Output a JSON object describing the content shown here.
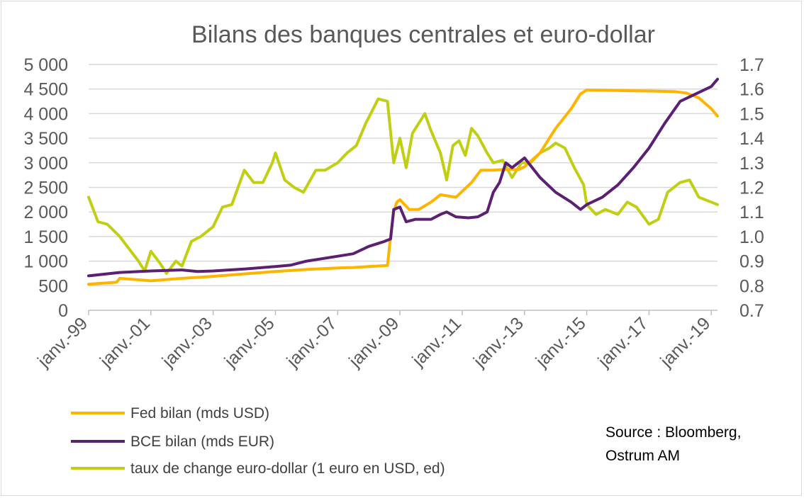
{
  "chart_data": {
    "type": "line",
    "title": "Bilans des banques centrales et euro-dollar",
    "x_tick_labels": [
      "janv.-99",
      "janv.-01",
      "janv.-03",
      "janv.-05",
      "janv.-07",
      "janv.-09",
      "janv.-11",
      "janv.-13",
      "janv.-15",
      "janv.-17",
      "janv.-19"
    ],
    "y_left": {
      "tick_labels": [
        "0",
        "500",
        "1 000",
        "1 500",
        "2 000",
        "2 500",
        "3 000",
        "3 500",
        "4 000",
        "4 500",
        "5 000"
      ],
      "ylim": [
        0,
        5000
      ]
    },
    "y_right": {
      "tick_labels": [
        "0.7",
        "0.8",
        "0.9",
        "1.0",
        "1.1",
        "1.2",
        "1.3",
        "1.4",
        "1.5",
        "1.6",
        "1.7"
      ],
      "ylim": [
        0.7,
        1.7
      ]
    },
    "grid": true,
    "legend_position": "bottom-left",
    "series": [
      {
        "name": "Fed bilan (mds USD)",
        "axis": "left",
        "color": "#ffb400",
        "x": [
          1999.0,
          1999.9,
          2000.0,
          2001.0,
          2002.0,
          2003.0,
          2004.0,
          2005.0,
          2006.0,
          2007.0,
          2007.5,
          2008.0,
          2008.6,
          2008.7,
          2008.8,
          2008.9,
          2009.0,
          2009.3,
          2009.6,
          2010.0,
          2010.3,
          2010.5,
          2010.8,
          2011.3,
          2011.6,
          2012.0,
          2012.5,
          2012.8,
          2013.0,
          2013.5,
          2014.0,
          2014.5,
          2014.8,
          2015.0,
          2016.0,
          2017.0,
          2017.8,
          2018.2,
          2018.6,
          2019.0,
          2019.2
        ],
        "y": [
          530,
          570,
          650,
          600,
          650,
          690,
          740,
          790,
          830,
          860,
          870,
          890,
          910,
          1500,
          2000,
          2200,
          2250,
          2050,
          2050,
          2200,
          2350,
          2330,
          2300,
          2600,
          2850,
          2850,
          2870,
          2860,
          2920,
          3200,
          3700,
          4100,
          4400,
          4480,
          4470,
          4460,
          4450,
          4420,
          4320,
          4100,
          3950
        ]
      },
      {
        "name": "BCE bilan (mds EUR)",
        "axis": "left",
        "color": "#5b2073",
        "x": [
          1999.0,
          2000.0,
          2001.0,
          2002.0,
          2002.5,
          2003.0,
          2004.0,
          2005.0,
          2005.5,
          2006.0,
          2007.0,
          2007.5,
          2008.0,
          2008.5,
          2008.7,
          2008.8,
          2009.0,
          2009.2,
          2009.5,
          2010.0,
          2010.3,
          2010.5,
          2010.8,
          2011.2,
          2011.5,
          2011.8,
          2012.0,
          2012.2,
          2012.4,
          2012.6,
          2013.0,
          2013.5,
          2014.0,
          2014.5,
          2014.8,
          2015.0,
          2015.5,
          2016.0,
          2016.5,
          2017.0,
          2017.5,
          2018.0,
          2018.5,
          2019.0,
          2019.2
        ],
        "y": [
          700,
          770,
          800,
          820,
          790,
          800,
          840,
          890,
          920,
          1000,
          1100,
          1150,
          1300,
          1400,
          1450,
          2050,
          2100,
          1800,
          1850,
          1850,
          1950,
          2000,
          1900,
          1880,
          1900,
          2000,
          2400,
          2600,
          3000,
          2900,
          3100,
          2700,
          2400,
          2200,
          2050,
          2150,
          2300,
          2550,
          2900,
          3300,
          3800,
          4250,
          4400,
          4550,
          4700
        ]
      },
      {
        "name": "taux de change euro-dollar (1 euro en USD, ed)",
        "axis": "right",
        "color": "#c0cf12",
        "x": [
          1999.0,
          1999.3,
          1999.6,
          2000.0,
          2000.3,
          2000.6,
          2000.8,
          2001.0,
          2001.3,
          2001.5,
          2001.8,
          2002.0,
          2002.3,
          2002.6,
          2003.0,
          2003.3,
          2003.6,
          2004.0,
          2004.3,
          2004.6,
          2004.9,
          2005.0,
          2005.3,
          2005.6,
          2005.9,
          2006.3,
          2006.6,
          2007.0,
          2007.3,
          2007.6,
          2007.9,
          2008.3,
          2008.6,
          2008.8,
          2009.0,
          2009.2,
          2009.4,
          2009.8,
          2010.0,
          2010.3,
          2010.5,
          2010.7,
          2010.9,
          2011.1,
          2011.3,
          2011.5,
          2011.8,
          2012.0,
          2012.3,
          2012.6,
          2012.9,
          2013.2,
          2013.5,
          2013.8,
          2014.0,
          2014.3,
          2014.6,
          2014.9,
          2015.0,
          2015.3,
          2015.6,
          2016.0,
          2016.3,
          2016.6,
          2017.0,
          2017.3,
          2017.6,
          2018.0,
          2018.3,
          2018.6,
          2019.0,
          2019.2
        ],
        "y": [
          1.16,
          1.06,
          1.05,
          1.0,
          0.95,
          0.9,
          0.86,
          0.94,
          0.89,
          0.85,
          0.9,
          0.88,
          0.98,
          1.0,
          1.04,
          1.12,
          1.13,
          1.27,
          1.22,
          1.22,
          1.3,
          1.34,
          1.23,
          1.2,
          1.18,
          1.27,
          1.27,
          1.3,
          1.34,
          1.37,
          1.46,
          1.56,
          1.55,
          1.3,
          1.4,
          1.28,
          1.42,
          1.5,
          1.43,
          1.34,
          1.23,
          1.37,
          1.39,
          1.33,
          1.44,
          1.41,
          1.34,
          1.3,
          1.31,
          1.24,
          1.3,
          1.3,
          1.34,
          1.36,
          1.38,
          1.36,
          1.28,
          1.21,
          1.13,
          1.09,
          1.11,
          1.09,
          1.14,
          1.12,
          1.05,
          1.07,
          1.18,
          1.22,
          1.23,
          1.16,
          1.14,
          1.13
        ]
      }
    ]
  },
  "source": [
    "Source : Bloomberg,",
    "Ostrum AM"
  ]
}
